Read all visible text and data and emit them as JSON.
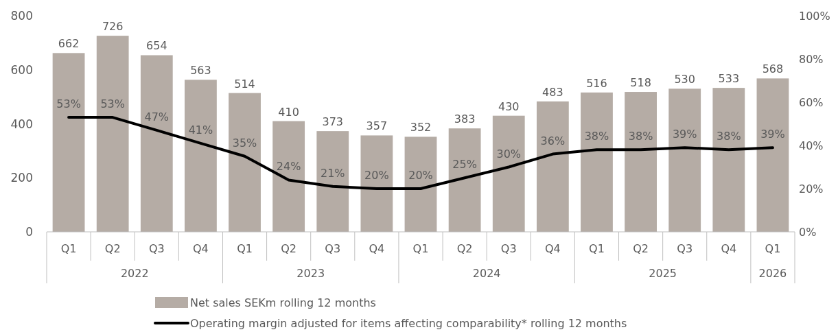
{
  "chart_data": {
    "type": "bar",
    "categories": [
      "Q1",
      "Q2",
      "Q3",
      "Q4",
      "Q1",
      "Q2",
      "Q3",
      "Q4",
      "Q1",
      "Q2",
      "Q3",
      "Q4",
      "Q1",
      "Q2",
      "Q3",
      "Q4",
      "Q1"
    ],
    "series": [
      {
        "name": "Net sales SEKm rolling 12 months",
        "color": "#b5aca5",
        "values": [
          662,
          726,
          654,
          563,
          514,
          410,
          373,
          357,
          352,
          383,
          430,
          483,
          516,
          518,
          530,
          533,
          568
        ]
      },
      {
        "name": "Operating margin adjusted for items affecting comparability* rolling 12 months",
        "type": "line",
        "axis": "y2",
        "color": "#000000",
        "values": [
          53,
          53,
          47,
          41,
          35,
          24,
          21,
          20,
          20,
          25,
          30,
          36,
          38,
          38,
          39,
          38,
          39
        ],
        "value_labels": [
          "53%",
          "53%",
          "47%",
          "41%",
          "35%",
          "24%",
          "21%",
          "20%",
          "20%",
          "25%",
          "30%",
          "36%",
          "38%",
          "38%",
          "39%",
          "38%",
          "39%"
        ]
      }
    ],
    "annotations": [
      "2022",
      "2023",
      "2024",
      "2025",
      "2026"
    ],
    "ylim": [
      0,
      800
    ],
    "yticks": [
      0,
      200,
      400,
      600,
      800
    ],
    "y2lim": [
      0,
      100
    ],
    "y2ticks": [
      {
        "value": 0,
        "label": "0%"
      },
      {
        "value": 20,
        "label": "20%"
      },
      {
        "value": 40,
        "label": "40%"
      },
      {
        "value": 60,
        "label": "60%"
      },
      {
        "value": 80,
        "label": "80%"
      },
      {
        "value": 100,
        "label": "100%"
      }
    ],
    "data_labels": true,
    "legend": "bottom",
    "grid": false,
    "marker": "none",
    "line_style": "solid"
  }
}
